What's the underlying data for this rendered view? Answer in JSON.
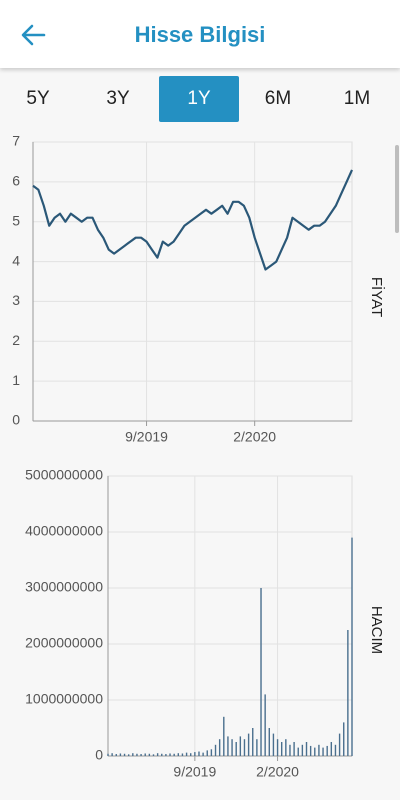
{
  "header": {
    "title": "Hisse Bilgisi"
  },
  "tabs": {
    "items": [
      "5Y",
      "3Y",
      "1Y",
      "6M",
      "1M"
    ],
    "selected": 2
  },
  "chart_data": [
    {
      "type": "line",
      "y_label": "FİYAT",
      "color": "#2b5878",
      "categories": [
        null,
        null,
        null,
        null,
        null,
        null,
        null,
        null,
        null,
        null,
        null,
        null,
        null,
        null,
        null,
        null,
        null,
        null,
        null,
        null,
        null,
        "9/2019",
        null,
        null,
        null,
        null,
        null,
        null,
        null,
        null,
        null,
        null,
        null,
        null,
        null,
        null,
        null,
        null,
        null,
        null,
        null,
        "2/2020",
        null,
        null,
        null,
        null,
        null,
        null,
        null,
        null,
        null,
        null,
        null,
        null,
        null,
        null,
        null,
        null,
        null,
        null
      ],
      "values": [
        5.9,
        5.8,
        5.4,
        4.9,
        5.1,
        5.2,
        5.0,
        5.2,
        5.1,
        5.0,
        5.1,
        5.1,
        4.8,
        4.6,
        4.3,
        4.2,
        4.3,
        4.4,
        4.5,
        4.6,
        4.6,
        4.5,
        4.3,
        4.1,
        4.5,
        4.4,
        4.5,
        4.7,
        4.9,
        5.0,
        5.1,
        5.2,
        5.3,
        5.2,
        5.3,
        5.4,
        5.2,
        5.5,
        5.5,
        5.4,
        5.1,
        4.6,
        4.2,
        3.8,
        3.9,
        4.0,
        4.3,
        4.6,
        5.1,
        5.0,
        4.9,
        4.8,
        4.9,
        4.9,
        5.0,
        5.2,
        5.4,
        5.7,
        6.0,
        6.3
      ],
      "ylim": [
        0,
        7
      ],
      "yticks": [
        0,
        1,
        2,
        3,
        4,
        5,
        6,
        7
      ],
      "grid": true
    },
    {
      "type": "bar",
      "y_label": "HACIM",
      "color": "#4a6f8e",
      "categories": [
        null,
        null,
        null,
        null,
        null,
        null,
        null,
        null,
        null,
        null,
        null,
        null,
        null,
        null,
        null,
        null,
        null,
        null,
        null,
        null,
        null,
        "9/2019",
        null,
        null,
        null,
        null,
        null,
        null,
        null,
        null,
        null,
        null,
        null,
        null,
        null,
        null,
        null,
        null,
        null,
        null,
        null,
        "2/2020",
        null,
        null,
        null,
        null,
        null,
        null,
        null,
        null,
        null,
        null,
        null,
        null,
        null,
        null,
        null,
        null,
        null,
        null
      ],
      "values": [
        40000000,
        50000000,
        35000000,
        45000000,
        40000000,
        30000000,
        50000000,
        40000000,
        35000000,
        45000000,
        40000000,
        30000000,
        50000000,
        40000000,
        35000000,
        45000000,
        40000000,
        50000000,
        45000000,
        60000000,
        50000000,
        70000000,
        80000000,
        60000000,
        100000000,
        120000000,
        200000000,
        300000000,
        700000000,
        350000000,
        300000000,
        250000000,
        350000000,
        300000000,
        400000000,
        500000000,
        300000000,
        3000000000,
        1100000000,
        500000000,
        400000000,
        300000000,
        250000000,
        300000000,
        200000000,
        250000000,
        150000000,
        200000000,
        250000000,
        180000000,
        150000000,
        200000000,
        150000000,
        180000000,
        250000000,
        200000000,
        400000000,
        600000000,
        2250000000,
        3900000000
      ],
      "ylim": [
        0,
        5000000000
      ],
      "yticks": [
        0,
        1000000000,
        2000000000,
        3000000000,
        4000000000,
        5000000000
      ],
      "grid": true
    }
  ]
}
